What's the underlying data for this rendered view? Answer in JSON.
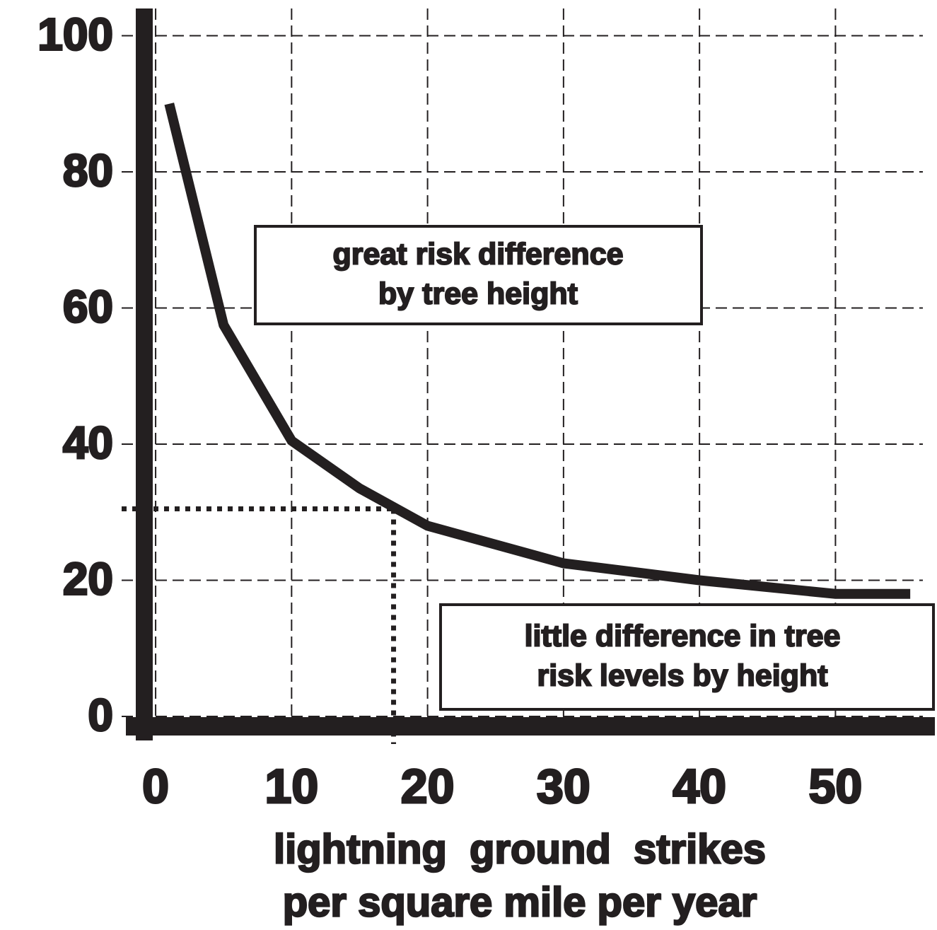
{
  "chart_data": {
    "type": "line",
    "x": [
      1,
      5,
      10,
      15,
      20,
      30,
      40,
      50,
      55.5
    ],
    "series": [
      {
        "color": "#231f20",
        "values": [
          90,
          57.5,
          40.5,
          33.5,
          28,
          22.5,
          20,
          18,
          18
        ]
      }
    ],
    "xlim": [
      -2.5,
      57
    ],
    "ylim": [
      -2,
      102
    ],
    "xticks": [
      0,
      10,
      20,
      30,
      40,
      50
    ],
    "yticks": [
      0,
      20,
      40,
      60,
      80,
      100
    ],
    "grid": true,
    "xlabel": [
      "lightning  ground  strikes",
      "per square mile per year"
    ],
    "reference": {
      "x": 17.5,
      "y": 30.5
    },
    "annotations": [
      {
        "lines": [
          "great risk difference",
          "by tree height"
        ]
      },
      {
        "lines": [
          "little difference in tree",
          "risk levels by height"
        ]
      }
    ]
  }
}
